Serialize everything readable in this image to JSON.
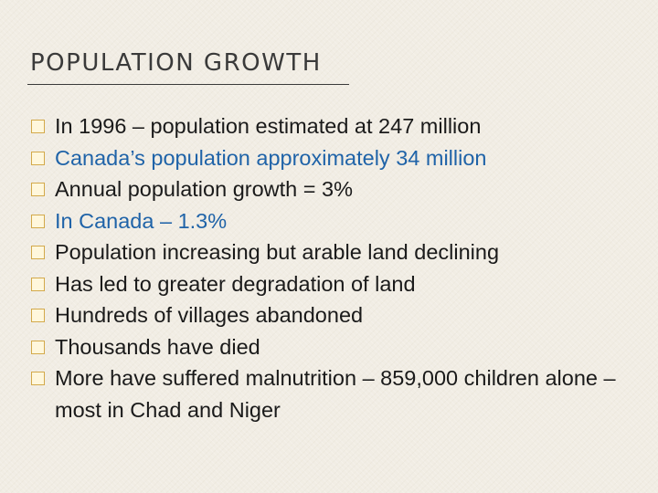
{
  "slide": {
    "title": "POPULATION GROWTH",
    "bullets": [
      {
        "text": "In 1996 – population estimated at 247 million",
        "accent": false
      },
      {
        "text": "Canada’s population approximately 34 million",
        "accent": true
      },
      {
        "text": "Annual population growth = 3%",
        "accent": false
      },
      {
        "text": "In Canada – 1.3%",
        "accent": true
      },
      {
        "text": "Population increasing but arable land declining",
        "accent": false
      },
      {
        "text": "Has led to greater degradation of land",
        "accent": false
      },
      {
        "text": "Hundreds of villages abandoned",
        "accent": false
      },
      {
        "text": "Thousands have died",
        "accent": false
      },
      {
        "text": "More have suffered malnutrition – 859,000 children alone – most in Chad and Niger",
        "accent": false
      }
    ],
    "colors": {
      "background": "#f1ede4",
      "title": "#3a3a3a",
      "body_text": "#1a1a1a",
      "accent_text": "#1f63a8",
      "bullet_marker": "#d3a94a"
    },
    "bullet_icon": "square-bullet-icon"
  }
}
